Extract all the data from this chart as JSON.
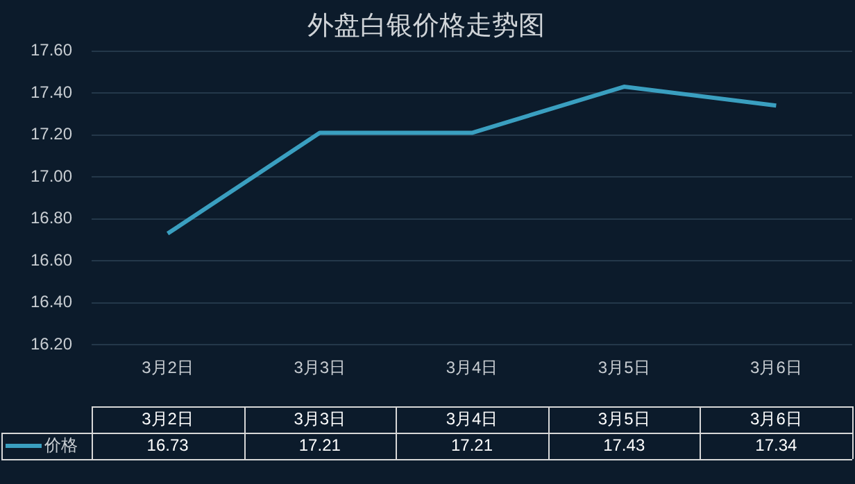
{
  "chart_data": {
    "type": "line",
    "title": "外盘白银价格走势图",
    "categories": [
      "3月2日",
      "3月3日",
      "3月4日",
      "3月5日",
      "3月6日"
    ],
    "series": [
      {
        "name": "价格",
        "color": "#3a9fc0",
        "values": [
          16.73,
          17.21,
          17.21,
          17.43,
          17.34
        ]
      }
    ],
    "ylim": [
      16.2,
      17.6
    ],
    "yticks": [
      {
        "value": 16.2,
        "label": "16.20"
      },
      {
        "value": 16.4,
        "label": "16.40"
      },
      {
        "value": 16.6,
        "label": "16.60"
      },
      {
        "value": 16.8,
        "label": "16.80"
      },
      {
        "value": 17.0,
        "label": "17.00"
      },
      {
        "value": 17.2,
        "label": "17.20"
      },
      {
        "value": 17.4,
        "label": "17.40"
      },
      {
        "value": 17.6,
        "label": "17.60"
      }
    ],
    "grid": "y",
    "legend": "bottom",
    "marker": "none",
    "line_style": "solid",
    "data_labels": true
  }
}
